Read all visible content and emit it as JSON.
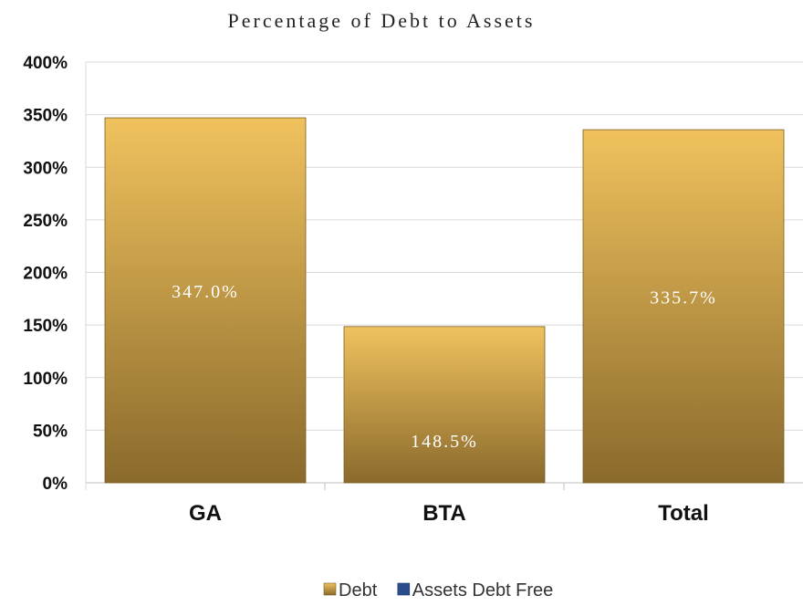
{
  "chart_data": {
    "type": "bar",
    "title": "Percentage of Debt to Assets",
    "categories": [
      "GA",
      "BTA",
      "Total"
    ],
    "series": [
      {
        "name": "Debt",
        "values": [
          347.0,
          148.5,
          335.7
        ],
        "labels": [
          "347.0%",
          "148.5%",
          "335.7%"
        ],
        "color": "#d9b04f"
      },
      {
        "name": "Assets Debt Free",
        "values": [
          0,
          0,
          0
        ],
        "color": "#2b4c8c"
      }
    ],
    "y_ticks": [
      "0%",
      "50%",
      "100%",
      "150%",
      "200%",
      "250%",
      "300%",
      "350%",
      "400%"
    ],
    "ylim": [
      0,
      400
    ],
    "grid": true,
    "legend_position": "bottom"
  }
}
